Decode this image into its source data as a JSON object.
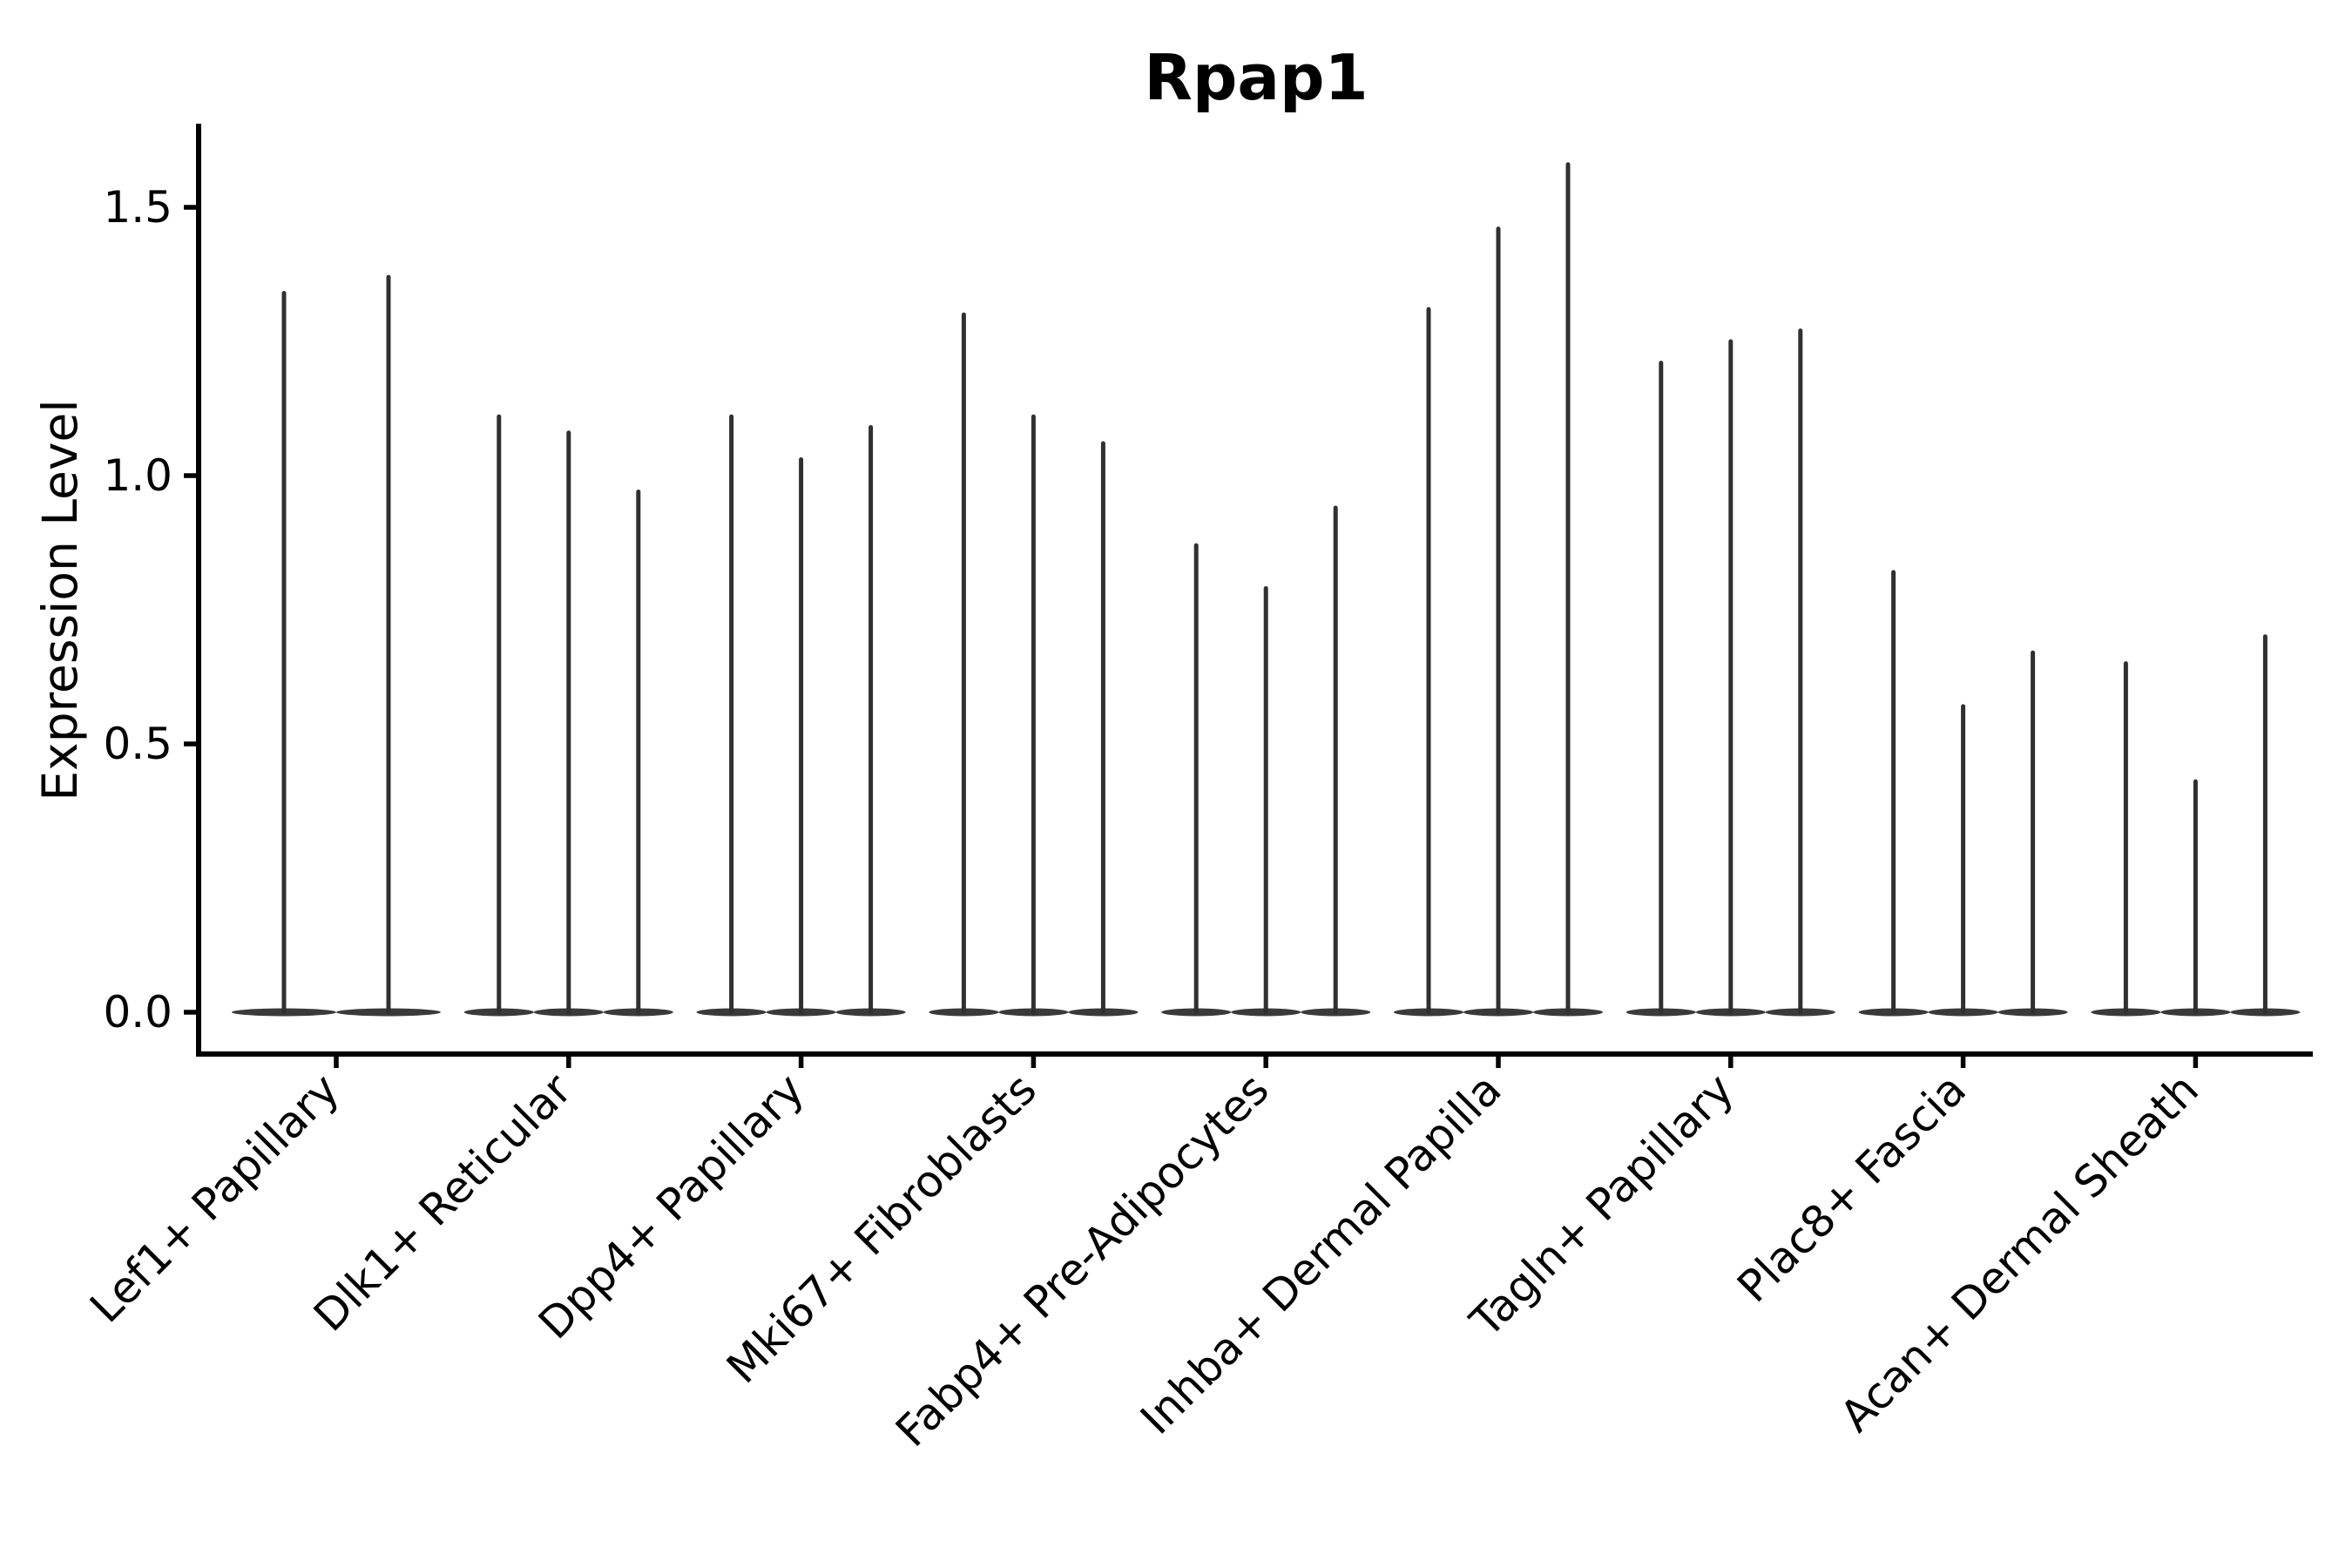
{
  "chart_data": {
    "type": "violin",
    "title": "Rpap1",
    "ylabel": "Expression Level",
    "xlabel": "",
    "categories": [
      "Lef1+ Papillary",
      "Dlk1+ Reticular",
      "Dpp4+ Papillary",
      "Mki67+ Fibroblasts",
      "Fabp4+ Pre-Adipocytes",
      "Inhba+ Dermal Papilla",
      "Tagln+ Papillary",
      "Plac8+ Fascia",
      "Acan+ Dermal Sheath"
    ],
    "groups": [
      {
        "category": "Lef1+ Papillary",
        "spike_peaks": [
          1.34,
          1.37
        ]
      },
      {
        "category": "Dlk1+ Reticular",
        "spike_peaks": [
          1.11,
          1.08,
          0.97
        ]
      },
      {
        "category": "Dpp4+ Papillary",
        "spike_peaks": [
          1.11,
          1.03,
          1.09
        ]
      },
      {
        "category": "Mki67+ Fibroblasts",
        "spike_peaks": [
          1.3,
          1.11,
          1.06
        ]
      },
      {
        "category": "Fabp4+ Pre-Adipocytes",
        "spike_peaks": [
          0.87,
          0.79,
          0.94
        ]
      },
      {
        "category": "Inhba+ Dermal Papilla",
        "spike_peaks": [
          1.31,
          1.46,
          1.58
        ]
      },
      {
        "category": "Tagln+ Papillary",
        "spike_peaks": [
          1.21,
          1.25,
          1.27
        ]
      },
      {
        "category": "Plac8+ Fascia",
        "spike_peaks": [
          0.82,
          0.57,
          0.67
        ]
      },
      {
        "category": "Acan+ Dermal Sheath",
        "spike_peaks": [
          0.65,
          0.43,
          0.7
        ]
      }
    ],
    "yticks": [
      {
        "label": "0.0",
        "value": 0.0
      },
      {
        "label": "0.5",
        "value": 0.5
      },
      {
        "label": "1.0",
        "value": 1.0
      },
      {
        "label": "1.5",
        "value": 1.5
      }
    ],
    "ylim": [
      -0.08,
      1.65
    ],
    "grid": false,
    "legend": "none",
    "violin_style": "needle-thin violins: density concentrated at 0 with a hairline spike up to the max expression value, flat lens-shaped base at 0",
    "colors": {
      "violin": "#303030",
      "violin_base": "#3a3a3a",
      "axis": "#000000",
      "text": "#000000",
      "background": "#ffffff"
    }
  }
}
